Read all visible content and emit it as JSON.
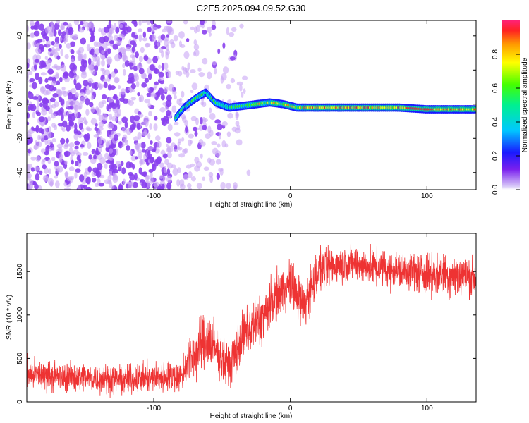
{
  "chart_data": [
    {
      "type": "heatmap",
      "title": "C2E5.2025.094.09.52.G30",
      "xlabel": "Height of straight line (km)",
      "ylabel": "Frequency (Hz)",
      "xlim": [
        -193,
        136
      ],
      "ylim": [
        -50,
        49
      ],
      "x_ticks": [
        -100,
        0,
        100
      ],
      "y_ticks": [
        -40,
        -20,
        0,
        20,
        40
      ],
      "colorbar": {
        "label": "Normalized spectral amplitude",
        "range": [
          0,
          1
        ],
        "ticks": [
          0.0,
          0.2,
          0.4,
          0.6,
          0.8
        ]
      },
      "ridge": [
        {
          "x": -84,
          "freq": -8
        },
        {
          "x": -78,
          "freq": -2
        },
        {
          "x": -70,
          "freq": 3
        },
        {
          "x": -62,
          "freq": 7
        },
        {
          "x": -55,
          "freq": 1
        },
        {
          "x": -45,
          "freq": -2
        },
        {
          "x": -35,
          "freq": -1
        },
        {
          "x": -25,
          "freq": 0
        },
        {
          "x": -15,
          "freq": 1
        },
        {
          "x": -5,
          "freq": 0
        },
        {
          "x": 5,
          "freq": -2
        },
        {
          "x": 20,
          "freq": -2
        },
        {
          "x": 40,
          "freq": -2
        },
        {
          "x": 60,
          "freq": -2
        },
        {
          "x": 80,
          "freq": -2
        },
        {
          "x": 100,
          "freq": -3
        },
        {
          "x": 120,
          "freq": -3
        },
        {
          "x": 136,
          "freq": -3
        }
      ],
      "grid": false
    },
    {
      "type": "line",
      "xlabel": "Height of straight line (km)",
      "ylabel": "SNR (10 * v/v)",
      "xlim": [
        -193,
        136
      ],
      "ylim": [
        0,
        1940
      ],
      "x_ticks": [
        -100,
        0,
        100
      ],
      "y_ticks": [
        0,
        500,
        1000,
        1500
      ],
      "series": [
        {
          "color": "#ee3333",
          "envelope": [
            {
              "x": -193,
              "low": 100,
              "high": 550
            },
            {
              "x": -160,
              "low": 80,
              "high": 480
            },
            {
              "x": -120,
              "low": 60,
              "high": 450
            },
            {
              "x": -80,
              "low": 80,
              "high": 520
            },
            {
              "x": -75,
              "low": 150,
              "high": 800
            },
            {
              "x": -60,
              "low": 300,
              "high": 1150
            },
            {
              "x": -45,
              "low": 100,
              "high": 700
            },
            {
              "x": -35,
              "low": 400,
              "high": 1100
            },
            {
              "x": -20,
              "low": 600,
              "high": 1350
            },
            {
              "x": -10,
              "low": 900,
              "high": 1550
            },
            {
              "x": 0,
              "low": 1050,
              "high": 1700
            },
            {
              "x": 10,
              "low": 700,
              "high": 1500
            },
            {
              "x": 20,
              "low": 1200,
              "high": 1800
            },
            {
              "x": 40,
              "low": 1350,
              "high": 1850
            },
            {
              "x": 60,
              "low": 1300,
              "high": 1800
            },
            {
              "x": 80,
              "low": 1250,
              "high": 1780
            },
            {
              "x": 100,
              "low": 1200,
              "high": 1750
            },
            {
              "x": 120,
              "low": 1150,
              "high": 1780
            },
            {
              "x": 136,
              "low": 1150,
              "high": 1700
            }
          ]
        }
      ],
      "grid": false
    }
  ],
  "colors": {
    "line": "#ee3333",
    "noise": "#8a40ee",
    "noise_light": "#c9a6f5"
  }
}
